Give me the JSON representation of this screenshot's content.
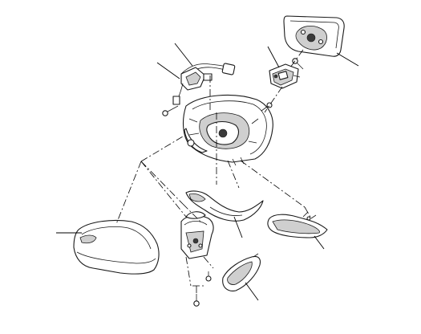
{
  "diagram": {
    "labels": [],
    "parts": [
      "mirror-glass",
      "mirror-actuator",
      "wiring-harness",
      "mirror-housing",
      "mirror-base-cover",
      "mirror-base-bracket",
      "skull-cap-cover",
      "turn-signal-lamp",
      "lower-trim-cover",
      "screws"
    ],
    "colors": {
      "line": "#1a1a1a",
      "shade": "#cfcfcf",
      "background": "#ffffff"
    }
  }
}
